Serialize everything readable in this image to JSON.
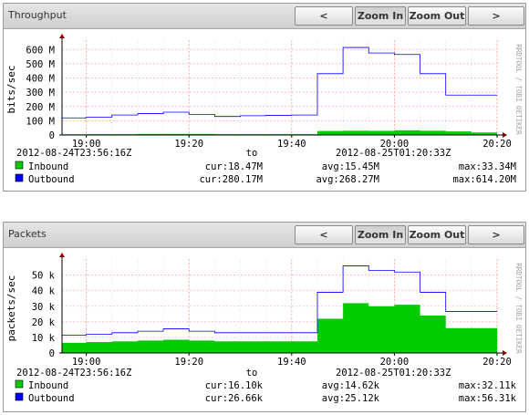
{
  "panels": [
    {
      "title": "Throughput",
      "buttons": {
        "prev": "<",
        "zoom_in": "Zoom In",
        "zoom_out": "Zoom Out",
        "next": ">"
      }
    },
    {
      "title": "Packets",
      "buttons": {
        "prev": "<",
        "zoom_in": "Zoom In",
        "zoom_out": "Zoom Out",
        "next": ">"
      }
    }
  ],
  "colors": {
    "inbound": "#00cc00",
    "outbound": "#0000ff",
    "grid": "#ffaaaa",
    "axis": "#000000",
    "arrow": "#880000"
  },
  "chart_data": [
    {
      "type": "area",
      "ylabel": "bits/sec",
      "watermark": "RRDTOOL / TOBI OETIKER",
      "x_ticks": [
        "19:00",
        "19:20",
        "19:40",
        "20:00",
        "20:20"
      ],
      "x_tick_minutes": [
        0,
        20,
        40,
        60,
        80
      ],
      "xlim_minutes": [
        -4.73,
        80
      ],
      "y_ticks": [
        "0",
        "100 M",
        "200 M",
        "300 M",
        "400 M",
        "500 M",
        "600 M"
      ],
      "y_tick_values": [
        0,
        100,
        200,
        300,
        400,
        500,
        600
      ],
      "ylim": [
        0,
        640
      ],
      "time_range": {
        "start": "2012-08-24T23:56:16Z",
        "to": "to",
        "end": "2012-08-25T01:20:33Z"
      },
      "series": [
        {
          "name": "Inbound",
          "style": "area",
          "color": "#00cc00",
          "step_x_minutes": [
            -5,
            0,
            5,
            10,
            15,
            20,
            25,
            30,
            35,
            40,
            45,
            50,
            55,
            60,
            65,
            70,
            75,
            80
          ],
          "values": [
            5,
            6,
            6,
            7,
            7,
            7,
            6,
            6,
            6,
            6,
            28,
            30,
            29,
            33,
            30,
            25,
            18,
            null
          ],
          "stats": {
            "cur": "cur:18.47M",
            "avg": "avg:15.45M",
            "max": "max:33.34M"
          }
        },
        {
          "name": "Outbound",
          "style": "line",
          "color": "#0000ff",
          "step_x_minutes": [
            -5,
            0,
            5,
            10,
            15,
            20,
            25,
            30,
            35,
            40,
            45,
            50,
            55,
            60,
            65,
            70,
            75,
            80
          ],
          "values": [
            120,
            125,
            140,
            150,
            160,
            145,
            130,
            135,
            138,
            140,
            430,
            614,
            575,
            565,
            430,
            280,
            280,
            null
          ],
          "stats": {
            "cur": "cur:280.17M",
            "avg": "avg:268.27M",
            "max": "max:614.20M"
          }
        }
      ]
    },
    {
      "type": "area",
      "ylabel": "packets/sec",
      "watermark": "RRDTOOL / TOBI OETIKER",
      "x_ticks": [
        "19:00",
        "19:20",
        "19:40",
        "20:00",
        "20:20"
      ],
      "x_tick_minutes": [
        0,
        20,
        40,
        60,
        80
      ],
      "xlim_minutes": [
        -4.73,
        80
      ],
      "y_ticks": [
        "0",
        "10 k",
        "20 k",
        "30 k",
        "40 k",
        "50 k"
      ],
      "y_tick_values": [
        0,
        10,
        20,
        30,
        40,
        50
      ],
      "ylim": [
        0,
        58
      ],
      "time_range": {
        "start": "2012-08-24T23:56:16Z",
        "to": "to",
        "end": "2012-08-25T01:20:33Z"
      },
      "series": [
        {
          "name": "Inbound",
          "style": "area",
          "color": "#00cc00",
          "step_x_minutes": [
            -5,
            0,
            5,
            10,
            15,
            20,
            25,
            30,
            35,
            40,
            45,
            50,
            55,
            60,
            65,
            70,
            75,
            80
          ],
          "values": [
            6.5,
            7,
            7.5,
            8,
            8.5,
            8,
            7.5,
            7.5,
            7.5,
            7.5,
            22,
            32,
            30,
            31,
            24,
            16,
            16,
            null
          ],
          "stats": {
            "cur": "cur:16.10k",
            "avg": "avg:14.62k",
            "max": "max:32.11k"
          }
        },
        {
          "name": "Outbound",
          "style": "line",
          "color": "#0000ff",
          "step_x_minutes": [
            -5,
            0,
            5,
            10,
            15,
            20,
            25,
            30,
            35,
            40,
            45,
            50,
            55,
            60,
            65,
            70,
            75,
            80
          ],
          "values": [
            11.5,
            12,
            13,
            14,
            15.5,
            14,
            13,
            13,
            13,
            13,
            39,
            56,
            53,
            52,
            39,
            26.7,
            26.7,
            null
          ],
          "stats": {
            "cur": "cur:26.66k",
            "avg": "avg:25.12k",
            "max": "max:56.31k"
          }
        }
      ]
    }
  ]
}
